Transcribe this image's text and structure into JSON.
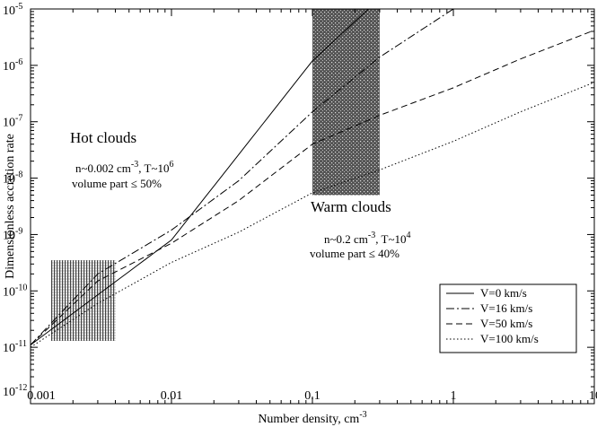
{
  "chart_data": {
    "type": "line",
    "xlabel": "Number density, cm",
    "xlabel_sup": "-3",
    "ylabel": "Dimensionless accretion rate",
    "xscale": "log",
    "yscale": "log",
    "xlim": [
      0.001,
      10
    ],
    "ylim": [
      1e-12,
      1e-05
    ],
    "grid": false,
    "legend_position": "bottom-right",
    "x_ticks": [
      {
        "value": 0.001,
        "label": "0.001"
      },
      {
        "value": 0.01,
        "label": "0.01"
      },
      {
        "value": 0.1,
        "label": "0.1"
      },
      {
        "value": 1,
        "label": "1"
      },
      {
        "value": 10,
        "label": "10"
      }
    ],
    "y_ticks": [
      {
        "value": 1e-12,
        "base": "10",
        "exp": "-12"
      },
      {
        "value": 1e-11,
        "base": "10",
        "exp": "-11"
      },
      {
        "value": 1e-10,
        "base": "10",
        "exp": "-10"
      },
      {
        "value": 1e-09,
        "base": "10",
        "exp": "-9"
      },
      {
        "value": 1e-08,
        "base": "10",
        "exp": "-8"
      },
      {
        "value": 1e-07,
        "base": "10",
        "exp": "-7"
      },
      {
        "value": 1e-06,
        "base": "10",
        "exp": "-6"
      },
      {
        "value": 1e-05,
        "base": "10",
        "exp": "-5"
      }
    ],
    "series": [
      {
        "name": "V=0 km/s",
        "dash": "solid",
        "points": [
          [
            0.001,
            1.1e-11
          ],
          [
            0.01,
            8e-10
          ],
          [
            0.1,
            1.2e-06
          ],
          [
            0.25,
            1e-05
          ]
        ]
      },
      {
        "name": "V=16 km/s",
        "dash": "dashdot",
        "points": [
          [
            0.001,
            1.1e-11
          ],
          [
            0.003,
            2e-10
          ],
          [
            0.01,
            1.2e-09
          ],
          [
            0.03,
            9e-09
          ],
          [
            0.1,
            1.5e-07
          ],
          [
            0.3,
            1.4e-06
          ],
          [
            1,
            1e-05
          ]
        ]
      },
      {
        "name": "V=50 km/s",
        "dash": "dashed",
        "points": [
          [
            0.001,
            1.1e-11
          ],
          [
            0.003,
            1.5e-10
          ],
          [
            0.01,
            7e-10
          ],
          [
            0.03,
            4e-09
          ],
          [
            0.1,
            4e-08
          ],
          [
            0.3,
            1.3e-07
          ],
          [
            1,
            4e-07
          ],
          [
            3,
            1.3e-06
          ],
          [
            10,
            4.2e-06
          ]
        ]
      },
      {
        "name": "V=100 km/s",
        "dash": "dotted",
        "points": [
          [
            0.001,
            1e-11
          ],
          [
            0.003,
            6e-11
          ],
          [
            0.01,
            3.2e-10
          ],
          [
            0.03,
            1.1e-09
          ],
          [
            0.1,
            5.5e-09
          ],
          [
            0.3,
            1.4e-08
          ],
          [
            1,
            4.5e-08
          ],
          [
            3,
            1.5e-07
          ],
          [
            10,
            5e-07
          ]
        ]
      }
    ],
    "regions": [
      {
        "label": "hot-clouds-region",
        "x": [
          0.0014,
          0.004
        ],
        "y": [
          1.3e-11,
          3.5e-10
        ],
        "style": "light-hatch"
      },
      {
        "label": "warm-clouds-region",
        "x": [
          0.1,
          0.3
        ],
        "y": [
          5e-09,
          1e-05
        ],
        "style": "dark-hatch"
      }
    ],
    "annotations": {
      "hot_title": "Hot clouds",
      "hot_params": "n~0.002 cm",
      "hot_params_sup1": "-3",
      "hot_params_mid": ", T~10",
      "hot_params_sup2": "6",
      "hot_volume": "volume part ≤ 50%",
      "warm_title": "Warm clouds",
      "warm_params": "n~0.2 cm",
      "warm_params_sup1": "-3",
      "warm_params_mid": ", T~10",
      "warm_params_sup2": "4",
      "warm_volume": "volume part ≤ 40%"
    }
  }
}
